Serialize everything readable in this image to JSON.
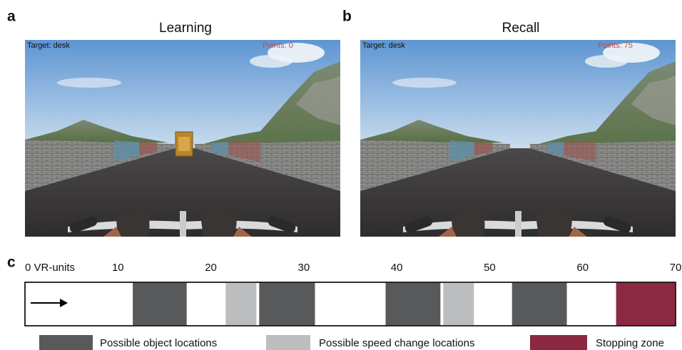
{
  "panels": [
    {
      "letter": "a",
      "title": "Learning",
      "target": "Target: desk",
      "points": "Points: 0"
    },
    {
      "letter": "b",
      "title": "Recall",
      "target": "Target: desk",
      "points": "Points: 75"
    }
  ],
  "track": {
    "letter": "c",
    "xlim": [
      0,
      70
    ],
    "ticks": [
      {
        "value": 0,
        "label": "0 VR-units"
      },
      10,
      20,
      30,
      40,
      50,
      60,
      70
    ],
    "object_zones": [
      [
        11.6,
        17.4
      ],
      [
        25.2,
        31.2
      ],
      [
        38.8,
        44.7
      ],
      [
        52.4,
        58.3
      ]
    ],
    "speed_zones": [
      [
        21.6,
        24.9
      ],
      [
        45,
        48.3
      ]
    ],
    "stop_zone": [
      63.6,
      70
    ]
  },
  "legend": [
    {
      "label": "Possible object locations",
      "color": "#58595b"
    },
    {
      "label": "Possible speed change locations",
      "color": "#bcbdbf"
    },
    {
      "label": "Stopping zone",
      "color": "#8b2942"
    }
  ]
}
